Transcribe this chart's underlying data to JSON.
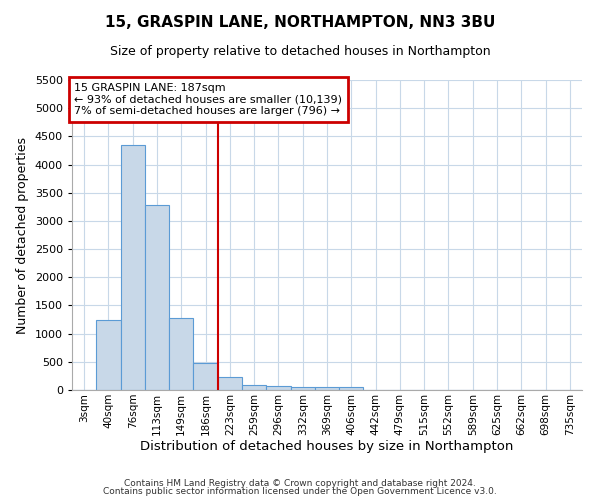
{
  "title1": "15, GRASPIN LANE, NORTHAMPTON, NN3 3BU",
  "title2": "Size of property relative to detached houses in Northampton",
  "xlabel": "Distribution of detached houses by size in Northampton",
  "ylabel": "Number of detached properties",
  "annotation_title": "15 GRASPIN LANE: 187sqm",
  "annotation_line1": "← 93% of detached houses are smaller (10,139)",
  "annotation_line2": "7% of semi-detached houses are larger (796) →",
  "footer1": "Contains HM Land Registry data © Crown copyright and database right 2024.",
  "footer2": "Contains public sector information licensed under the Open Government Licence v3.0.",
  "bins": [
    "3sqm",
    "40sqm",
    "76sqm",
    "113sqm",
    "149sqm",
    "186sqm",
    "223sqm",
    "259sqm",
    "296sqm",
    "332sqm",
    "369sqm",
    "406sqm",
    "442sqm",
    "479sqm",
    "515sqm",
    "552sqm",
    "589sqm",
    "625sqm",
    "662sqm",
    "698sqm",
    "735sqm"
  ],
  "values": [
    0,
    1250,
    4350,
    3280,
    1280,
    480,
    225,
    90,
    65,
    55,
    55,
    55,
    0,
    0,
    0,
    0,
    0,
    0,
    0,
    0,
    0
  ],
  "bar_color": "#c8d8e8",
  "bar_edge_color": "#5b9bd5",
  "vline_index": 5,
  "vline_color": "#cc0000",
  "annotation_box_color": "#cc0000",
  "ylim": [
    0,
    5500
  ],
  "yticks": [
    0,
    500,
    1000,
    1500,
    2000,
    2500,
    3000,
    3500,
    4000,
    4500,
    5000,
    5500
  ],
  "background_color": "#ffffff",
  "grid_color": "#c8d8e8"
}
